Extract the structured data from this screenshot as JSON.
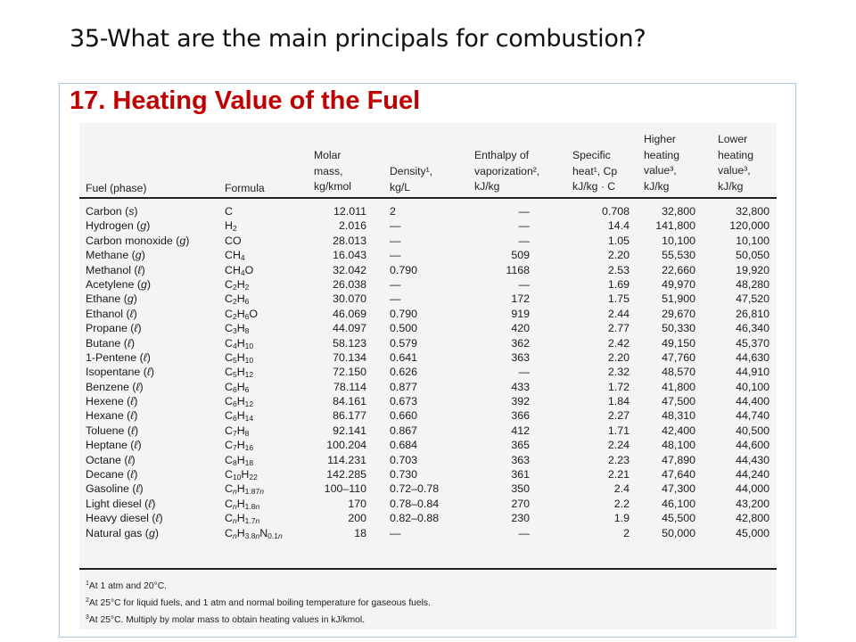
{
  "slide": {
    "title": "35-What are the main principals for combustion?",
    "section_heading": "17. Heating Value of the Fuel"
  },
  "table": {
    "headers": {
      "fuel": "Fuel (phase)",
      "formula": "Formula",
      "molar": "Molar\nmass,\nkg/kmol",
      "density": "Density¹,\nkg/L",
      "enthalpy": "Enthalpy of\nvaporization²,\nkJ/kg",
      "cp": "Specific\nheat¹, Cp\nkJ/kg · C",
      "hhv": "Higher\nheating\nvalue³,\nkJ/kg",
      "lhv": "Lower\nheating\nvalue³,\nkJ/kg"
    },
    "rows": [
      {
        "fuel": "Carbon (s)",
        "formula": "C",
        "molar": "12.011",
        "density": "2",
        "enthalpy": "—",
        "cp": "0.708",
        "hhv": "32,800",
        "lhv": "32,800"
      },
      {
        "fuel": "Hydrogen (g)",
        "formula": "H<sub>2</sub>",
        "molar": "2.016",
        "density": "—",
        "enthalpy": "—",
        "cp": "14.4",
        "hhv": "141,800",
        "lhv": "120,000"
      },
      {
        "fuel": "Carbon monoxide (g)",
        "formula": "CO",
        "molar": "28.013",
        "density": "—",
        "enthalpy": "—",
        "cp": "1.05",
        "hhv": "10,100",
        "lhv": "10,100"
      },
      {
        "fuel": "Methane (g)",
        "formula": "CH<sub>4</sub>",
        "molar": "16.043",
        "density": "—",
        "enthalpy": "509",
        "cp": "2.20",
        "hhv": "55,530",
        "lhv": "50,050"
      },
      {
        "fuel": "Methanol (ℓ)",
        "formula": "CH<sub>4</sub>O",
        "molar": "32.042",
        "density": "0.790",
        "enthalpy": "1168",
        "cp": "2.53",
        "hhv": "22,660",
        "lhv": "19,920"
      },
      {
        "fuel": "Acetylene (g)",
        "formula": "C<sub>2</sub>H<sub>2</sub>",
        "molar": "26.038",
        "density": "—",
        "enthalpy": "—",
        "cp": "1.69",
        "hhv": "49,970",
        "lhv": "48,280"
      },
      {
        "fuel": "Ethane (g)",
        "formula": "C<sub>2</sub>H<sub>6</sub>",
        "molar": "30.070",
        "density": "—",
        "enthalpy": "172",
        "cp": "1.75",
        "hhv": "51,900",
        "lhv": "47,520"
      },
      {
        "fuel": "Ethanol (ℓ)",
        "formula": "C<sub>2</sub>H<sub>6</sub>O",
        "molar": "46.069",
        "density": "0.790",
        "enthalpy": "919",
        "cp": "2.44",
        "hhv": "29,670",
        "lhv": "26,810"
      },
      {
        "fuel": "Propane (ℓ)",
        "formula": "C<sub>3</sub>H<sub>8</sub>",
        "molar": "44.097",
        "density": "0.500",
        "enthalpy": "420",
        "cp": "2.77",
        "hhv": "50,330",
        "lhv": "46,340"
      },
      {
        "fuel": "Butane (ℓ)",
        "formula": "C<sub>4</sub>H<sub>10</sub>",
        "molar": "58.123",
        "density": "0.579",
        "enthalpy": "362",
        "cp": "2.42",
        "hhv": "49,150",
        "lhv": "45,370"
      },
      {
        "fuel": "1-Pentene (ℓ)",
        "formula": "C<sub>5</sub>H<sub>10</sub>",
        "molar": "70.134",
        "density": "0.641",
        "enthalpy": "363",
        "cp": "2.20",
        "hhv": "47,760",
        "lhv": "44,630"
      },
      {
        "fuel": "Isopentane (ℓ)",
        "formula": "C<sub>5</sub>H<sub>12</sub>",
        "molar": "72.150",
        "density": "0.626",
        "enthalpy": "—",
        "cp": "2.32",
        "hhv": "48,570",
        "lhv": "44,910"
      },
      {
        "fuel": "Benzene (ℓ)",
        "formula": "C<sub>6</sub>H<sub>6</sub>",
        "molar": "78.114",
        "density": "0.877",
        "enthalpy": "433",
        "cp": "1.72",
        "hhv": "41,800",
        "lhv": "40,100"
      },
      {
        "fuel": "Hexene (ℓ)",
        "formula": "C<sub>6</sub>H<sub>12</sub>",
        "molar": "84.161",
        "density": "0.673",
        "enthalpy": "392",
        "cp": "1.84",
        "hhv": "47,500",
        "lhv": "44,400"
      },
      {
        "fuel": "Hexane (ℓ)",
        "formula": "C<sub>6</sub>H<sub>14</sub>",
        "molar": "86.177",
        "density": "0.660",
        "enthalpy": "366",
        "cp": "2.27",
        "hhv": "48,310",
        "lhv": "44,740"
      },
      {
        "fuel": "Toluene (ℓ)",
        "formula": "C<sub>7</sub>H<sub>8</sub>",
        "molar": "92.141",
        "density": "0.867",
        "enthalpy": "412",
        "cp": "1.71",
        "hhv": "42,400",
        "lhv": "40,500"
      },
      {
        "fuel": "Heptane (ℓ)",
        "formula": "C<sub>7</sub>H<sub>16</sub>",
        "molar": "100.204",
        "density": "0.684",
        "enthalpy": "365",
        "cp": "2.24",
        "hhv": "48,100",
        "lhv": "44,600"
      },
      {
        "fuel": "Octane (ℓ)",
        "formula": "C<sub>8</sub>H<sub>18</sub>",
        "molar": "114.231",
        "density": "0.703",
        "enthalpy": "363",
        "cp": "2.23",
        "hhv": "47,890",
        "lhv": "44,430"
      },
      {
        "fuel": "Decane (ℓ)",
        "formula": "C<sub>10</sub>H<sub>22</sub>",
        "molar": "142.285",
        "density": "0.730",
        "enthalpy": "361",
        "cp": "2.21",
        "hhv": "47,640",
        "lhv": "44,240"
      },
      {
        "fuel": "Gasoline (ℓ)",
        "formula": "C<sub>n</sub>H<sub>1.87n</sub>",
        "molar": "100–110",
        "density": "0.72–0.78",
        "enthalpy": "350",
        "cp": "2.4",
        "hhv": "47,300",
        "lhv": "44,000"
      },
      {
        "fuel": "Light diesel (ℓ)",
        "formula": "C<sub>n</sub>H<sub>1.8n</sub>",
        "molar": "170",
        "density": "0.78–0.84",
        "enthalpy": "270",
        "cp": "2.2",
        "hhv": "46,100",
        "lhv": "43,200"
      },
      {
        "fuel": "Heavy diesel (ℓ)",
        "formula": "C<sub>n</sub>H<sub>1.7n</sub>",
        "molar": "200",
        "density": "0.82–0.88",
        "enthalpy": "230",
        "cp": "1.9",
        "hhv": "45,500",
        "lhv": "42,800"
      },
      {
        "fuel": "Natural gas (g)",
        "formula": "C<sub>n</sub>H<sub>3.8n</sub>N<sub>0.1n</sub>",
        "molar": "18",
        "density": "—",
        "enthalpy": "—",
        "cp": "2",
        "hhv": "50,000",
        "lhv": "45,000"
      }
    ],
    "footnotes": [
      "<sup>1</sup>At 1 atm and 20°C.",
      "<sup>2</sup>At 25°C for liquid fuels, and 1 atm and normal boiling temperature for gaseous fuels.",
      "<sup>3</sup>At 25°C. Multiply by molar mass to obtain heating values in kJ/kmol."
    ]
  }
}
